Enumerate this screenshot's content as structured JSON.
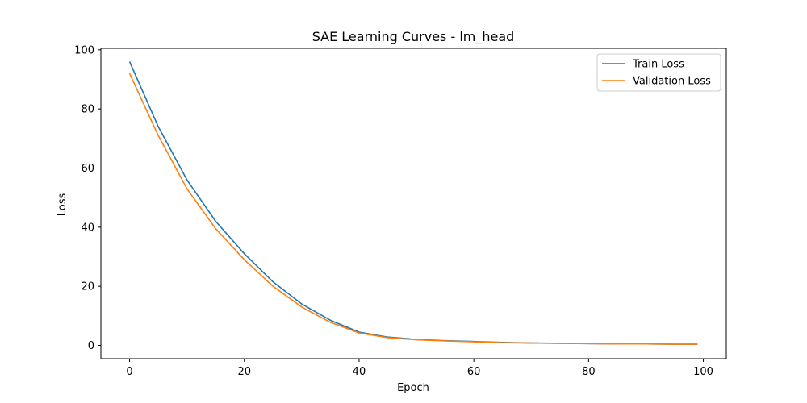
{
  "chart_data": {
    "type": "line",
    "title": "SAE Learning Curves - lm_head",
    "xlabel": "Epoch",
    "ylabel": "Loss",
    "xlim": [
      -5,
      104
    ],
    "ylim": [
      -4.5,
      100.5
    ],
    "xticks": [
      0,
      20,
      40,
      60,
      80,
      100
    ],
    "yticks": [
      0,
      20,
      40,
      60,
      80,
      100
    ],
    "grid": false,
    "legend_position": "top-right",
    "x": [
      0,
      5,
      10,
      15,
      20,
      25,
      30,
      35,
      40,
      45,
      50,
      55,
      60,
      65,
      70,
      75,
      80,
      85,
      90,
      95,
      99
    ],
    "series": [
      {
        "name": "Train Loss",
        "color": "#1f77b4",
        "values": [
          96,
          74,
          56,
          42,
          31,
          21.5,
          14,
          8.5,
          4.5,
          2.8,
          2,
          1.6,
          1.3,
          1,
          0.8,
          0.7,
          0.6,
          0.5,
          0.5,
          0.4,
          0.4
        ]
      },
      {
        "name": "Validation Loss",
        "color": "#ff7f0e",
        "values": [
          92,
          71,
          53,
          39.5,
          29,
          20,
          13,
          7.8,
          4.2,
          2.6,
          1.9,
          1.5,
          1.2,
          0.9,
          0.8,
          0.7,
          0.6,
          0.5,
          0.5,
          0.4,
          0.4
        ]
      }
    ]
  }
}
